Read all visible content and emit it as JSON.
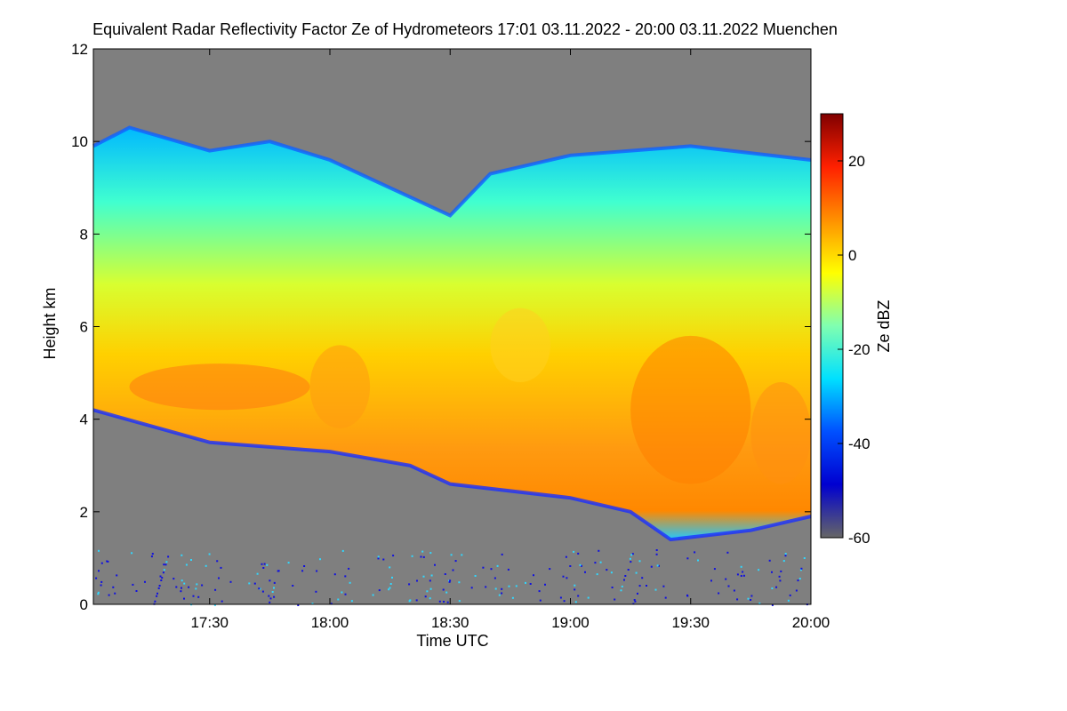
{
  "chart_data": {
    "type": "heatmap",
    "title": "Equivalent Radar Reflectivity Factor Ze of Hydrometeors   17:01 03.11.2022 - 20:00 03.11.2022 Muenchen",
    "xlabel": "Time UTC",
    "ylabel": "Height km",
    "colorbar_label": "Ze dBZ",
    "x_range": [
      "17:01",
      "20:00"
    ],
    "x_ticks": [
      "17:30",
      "18:00",
      "18:30",
      "19:00",
      "19:30",
      "20:00"
    ],
    "ylim": [
      0,
      12
    ],
    "y_ticks": [
      "0",
      "2",
      "4",
      "6",
      "8",
      "10",
      "12"
    ],
    "colorbar_range": [
      -60,
      30
    ],
    "colorbar_ticks": [
      "20",
      "0",
      "-20",
      "-40",
      "-60"
    ],
    "colormap": [
      "#666666",
      "#0000d0",
      "#0050ff",
      "#00e0ff",
      "#80ffb0",
      "#ffff00",
      "#ff9000",
      "#ff2000",
      "#800000"
    ],
    "no_data_color": "#7f7f7f",
    "cloud_top_km": [
      {
        "time": "17:01",
        "height": 9.9
      },
      {
        "time": "17:10",
        "height": 10.3
      },
      {
        "time": "17:30",
        "height": 9.8
      },
      {
        "time": "17:45",
        "height": 10.0
      },
      {
        "time": "18:00",
        "height": 9.6
      },
      {
        "time": "18:15",
        "height": 9.0
      },
      {
        "time": "18:30",
        "height": 8.4
      },
      {
        "time": "18:40",
        "height": 9.3
      },
      {
        "time": "19:00",
        "height": 9.7
      },
      {
        "time": "19:30",
        "height": 9.9
      },
      {
        "time": "20:00",
        "height": 9.6
      }
    ],
    "cloud_base_km": [
      {
        "time": "17:01",
        "height": 4.2
      },
      {
        "time": "17:30",
        "height": 3.5
      },
      {
        "time": "18:00",
        "height": 3.3
      },
      {
        "time": "18:20",
        "height": 3.0
      },
      {
        "time": "18:30",
        "height": 2.6
      },
      {
        "time": "19:00",
        "height": 2.3
      },
      {
        "time": "19:15",
        "height": 2.0
      },
      {
        "time": "19:25",
        "height": 1.4
      },
      {
        "time": "19:45",
        "height": 1.6
      },
      {
        "time": "20:00",
        "height": 1.9
      }
    ],
    "grid": false,
    "legend": "colorbar-right"
  }
}
